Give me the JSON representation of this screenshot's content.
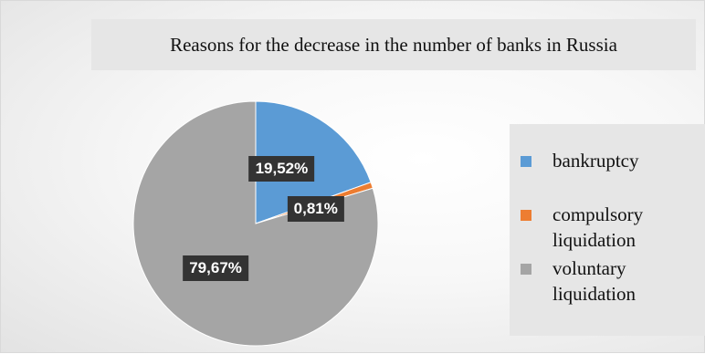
{
  "chart_data": {
    "type": "pie",
    "title": "Reasons for the decrease in the number of banks in Russia",
    "categories": [
      "bankruptcy",
      "compulsory liquidation",
      "voluntary liquidation"
    ],
    "values": [
      19.52,
      0.81,
      79.67
    ],
    "value_labels": [
      "19,52%",
      "0,81%",
      "79,67%"
    ],
    "colors": [
      "#5b9bd5",
      "#ed7d31",
      "#a5a5a5"
    ],
    "legend_position": "right"
  }
}
